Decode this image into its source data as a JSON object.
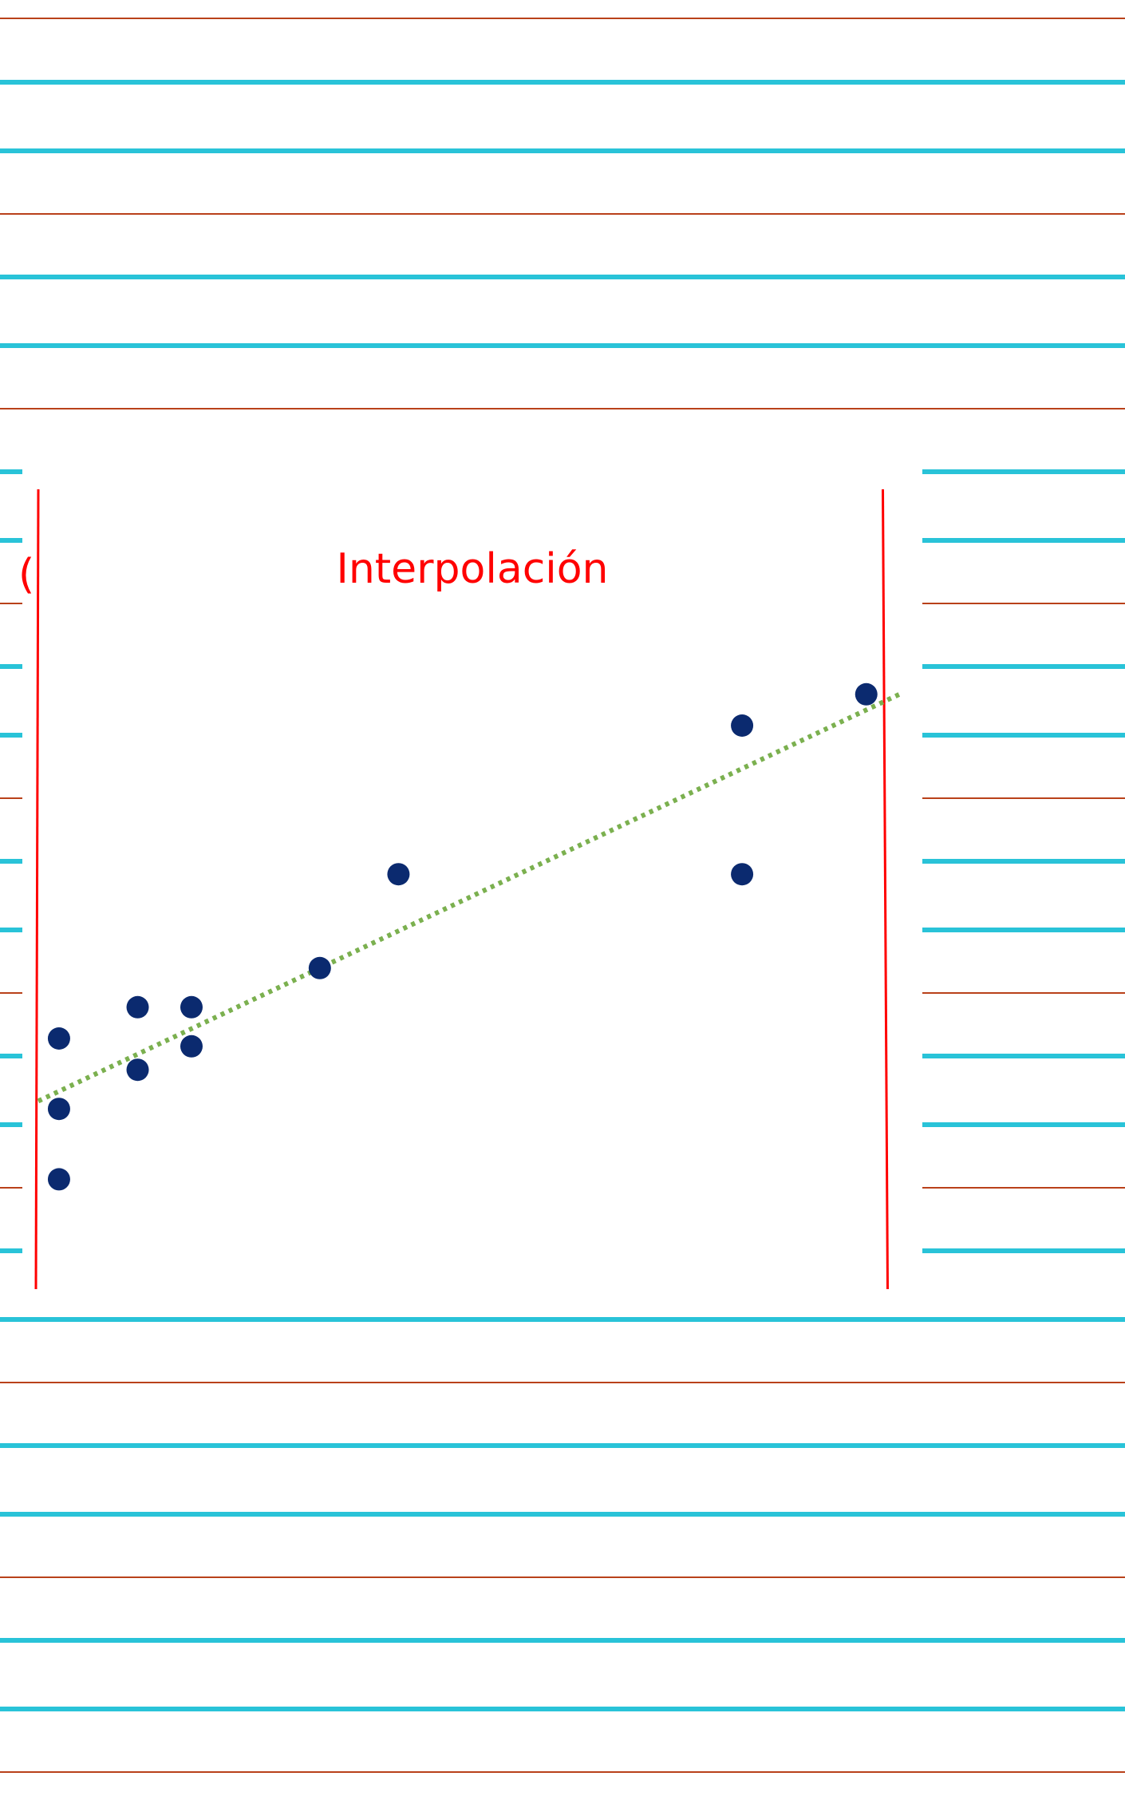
{
  "colors": {
    "blue_line": "#29c3d8",
    "red_line": "#b9411a",
    "boundary": "#ff0000",
    "point": "#0b2a6f",
    "trend": "#7bb04f"
  },
  "fragment_text": "(",
  "chart_data": {
    "type": "scatter",
    "title": "Interpolación",
    "xlabel": "",
    "ylabel": "",
    "grid": false,
    "xlim": [
      0,
      10.6
    ],
    "ylim": [
      0,
      10
    ],
    "series": [
      {
        "points": [
          [
            0.25,
            1.2
          ],
          [
            0.25,
            2.1
          ],
          [
            0.25,
            3.0
          ],
          [
            1.2,
            2.6
          ],
          [
            1.2,
            3.4
          ],
          [
            1.85,
            2.9
          ],
          [
            1.85,
            3.4
          ],
          [
            3.4,
            3.9
          ],
          [
            4.35,
            5.1
          ],
          [
            8.5,
            5.1
          ],
          [
            8.5,
            7.0
          ],
          [
            10.0,
            7.4
          ]
        ]
      }
    ],
    "trendline": {
      "style": "dotted",
      "x": [
        0,
        10.4
      ],
      "y": [
        2.2,
        7.4
      ]
    },
    "vertical_boundaries": {
      "x": [
        0.0,
        10.2
      ]
    }
  }
}
